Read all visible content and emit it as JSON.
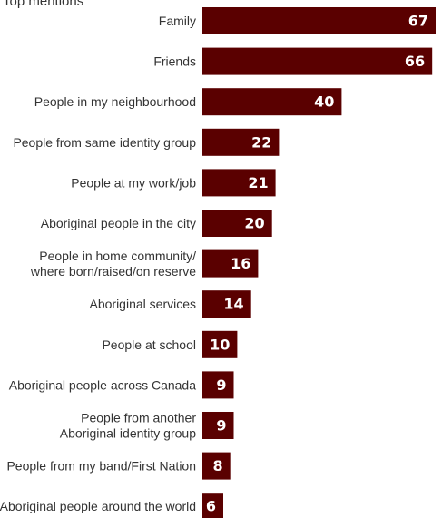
{
  "subtitle": "Top mentions",
  "colors": {
    "bar": "#5a0000"
  },
  "chart_data": {
    "type": "bar",
    "orientation": "horizontal",
    "title": "",
    "subtitle": "Top mentions",
    "xlabel": "",
    "ylabel": "",
    "xlim": [
      0,
      67
    ],
    "grid": false,
    "categories": [
      "Family",
      "Friends",
      "People in my neighbourhood",
      "People from same identity group",
      "People at my work/job",
      "Aboriginal people in the city",
      "People in home community/ where born/raised/on reserve",
      "Aboriginal services",
      "People at school",
      "Aboriginal people across Canada",
      "People from another Aboriginal identity group",
      "People from my band/First Nation",
      "Aboriginal people around the world"
    ],
    "category_lines": [
      [
        "Family"
      ],
      [
        "Friends"
      ],
      [
        "People in my neighbourhood"
      ],
      [
        "People from same identity group"
      ],
      [
        "People at my work/job"
      ],
      [
        "Aboriginal people in the city"
      ],
      [
        "People in home community/",
        "where born/raised/on reserve"
      ],
      [
        "Aboriginal services"
      ],
      [
        "People at school"
      ],
      [
        "Aboriginal people across Canada"
      ],
      [
        "People from another",
        "Aboriginal identity group"
      ],
      [
        "People from my band/First Nation"
      ],
      [
        "Aboriginal people around the world"
      ]
    ],
    "values": [
      67,
      66,
      40,
      22,
      21,
      20,
      16,
      14,
      10,
      9,
      9,
      8,
      6
    ]
  }
}
